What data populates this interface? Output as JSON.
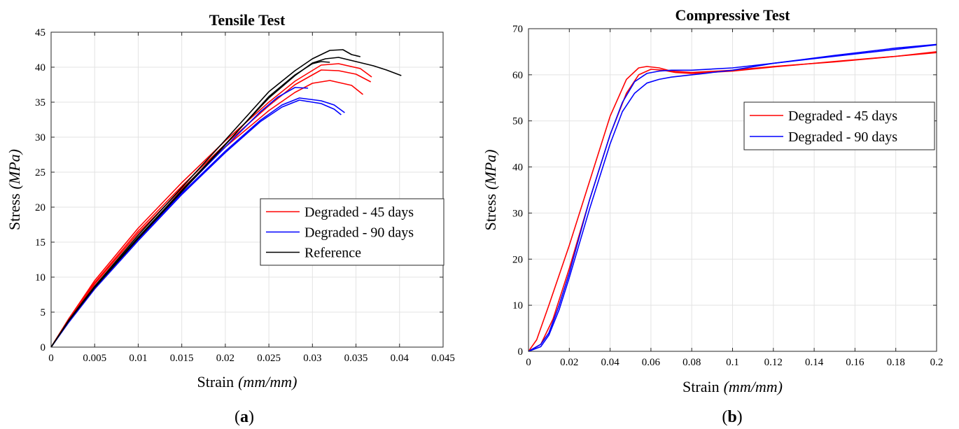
{
  "chart_data": [
    {
      "type": "line",
      "title": "Tensile Test",
      "panel_label": "a",
      "xlabel_text": "Strain",
      "xlabel_unit": "(mm/mm)",
      "ylabel_text": "Stress",
      "ylabel_unit": "(MPa)",
      "xlim": [
        0,
        0.045
      ],
      "ylim": [
        0,
        45
      ],
      "xticks": [
        0,
        0.005,
        0.01,
        0.015,
        0.02,
        0.025,
        0.03,
        0.035,
        0.04,
        0.045
      ],
      "xtick_labels": [
        "0",
        "0.005",
        "0.01",
        "0.015",
        "0.02",
        "0.025",
        "0.03",
        "0.035",
        "0.04",
        "0.045"
      ],
      "yticks": [
        0,
        5,
        10,
        15,
        20,
        25,
        30,
        35,
        40,
        45
      ],
      "ytick_labels": [
        "0",
        "5",
        "10",
        "15",
        "20",
        "25",
        "30",
        "35",
        "40",
        "45"
      ],
      "grid": true,
      "legend_position": "lower-right",
      "legend": [
        {
          "label": "Degraded - 45 days",
          "color": "#ff0000"
        },
        {
          "label": "Degraded - 90 days",
          "color": "#0000ff"
        },
        {
          "label": "Reference",
          "color": "#000000"
        }
      ],
      "series": [
        {
          "group": "Degraded - 45 days",
          "color": "#ff0000",
          "x": [
            0,
            0.002,
            0.005,
            0.01,
            0.015,
            0.02,
            0.025,
            0.028,
            0.031,
            0.033,
            0.0355,
            0.0368
          ],
          "y": [
            0,
            4,
            9.5,
            17,
            23.5,
            29.5,
            35,
            38,
            40.3,
            40.5,
            39.8,
            38.6
          ]
        },
        {
          "group": "Degraded - 45 days",
          "color": "#ff0000",
          "x": [
            0,
            0.002,
            0.005,
            0.01,
            0.015,
            0.02,
            0.025,
            0.028,
            0.031,
            0.033,
            0.035,
            0.0367
          ],
          "y": [
            0,
            4,
            9.2,
            16.6,
            23,
            29,
            34.5,
            37.5,
            39.6,
            39.5,
            39,
            37.9
          ]
        },
        {
          "group": "Degraded - 45 days",
          "color": "#ff0000",
          "x": [
            0,
            0.002,
            0.005,
            0.01,
            0.015,
            0.02,
            0.025,
            0.028,
            0.03,
            0.032,
            0.0345,
            0.0358
          ],
          "y": [
            0,
            3.9,
            9,
            16.3,
            22.6,
            28.6,
            33.8,
            36.4,
            37.7,
            38.1,
            37.4,
            36.1
          ]
        },
        {
          "group": "Degraded - 90 days",
          "color": "#0000ff",
          "x": [
            0,
            0.002,
            0.005,
            0.01,
            0.015,
            0.02,
            0.024,
            0.026,
            0.028,
            0.0295
          ],
          "y": [
            0,
            3.6,
            8.5,
            15.5,
            22.3,
            28.6,
            33.6,
            35.7,
            37.1,
            37
          ]
        },
        {
          "group": "Degraded - 90 days",
          "color": "#0000ff",
          "x": [
            0,
            0.002,
            0.005,
            0.01,
            0.015,
            0.02,
            0.024,
            0.0265,
            0.0285,
            0.031,
            0.0325,
            0.0337
          ],
          "y": [
            0,
            3.6,
            8.4,
            15.4,
            22,
            28,
            32.4,
            34.6,
            35.6,
            35.2,
            34.6,
            33.5
          ]
        },
        {
          "group": "Degraded - 90 days",
          "color": "#0000ff",
          "x": [
            0,
            0.002,
            0.005,
            0.01,
            0.015,
            0.02,
            0.024,
            0.0265,
            0.0285,
            0.031,
            0.0325,
            0.0333
          ],
          "y": [
            0,
            3.5,
            8.3,
            15.2,
            21.8,
            27.8,
            32.2,
            34.3,
            35.3,
            34.8,
            34,
            33.2
          ]
        },
        {
          "group": "Reference",
          "color": "#000000",
          "x": [
            0,
            0.002,
            0.005,
            0.01,
            0.015,
            0.02,
            0.025,
            0.028,
            0.03,
            0.032,
            0.0335,
            0.0345,
            0.0355
          ],
          "y": [
            0,
            3.8,
            8.7,
            16,
            22.8,
            29.6,
            36.5,
            39.5,
            41.2,
            42.4,
            42.5,
            41.8,
            41.5
          ]
        },
        {
          "group": "Reference",
          "color": "#000000",
          "x": [
            0,
            0.002,
            0.005,
            0.01,
            0.015,
            0.02,
            0.025,
            0.028,
            0.03,
            0.0315,
            0.033,
            0.035,
            0.037,
            0.0385,
            0.0402
          ],
          "y": [
            0,
            3.7,
            8.6,
            15.7,
            22.4,
            29,
            35.6,
            38.8,
            40.6,
            41.2,
            41.4,
            40.8,
            40.2,
            39.6,
            38.8
          ]
        },
        {
          "group": "Reference",
          "color": "#000000",
          "x": [
            0,
            0.002,
            0.005,
            0.01,
            0.015,
            0.02,
            0.025,
            0.028,
            0.03,
            0.031,
            0.032
          ],
          "y": [
            0,
            3.7,
            8.5,
            15.5,
            22.2,
            28.9,
            35.8,
            38.9,
            40.5,
            40.8,
            40.7
          ]
        }
      ]
    },
    {
      "type": "line",
      "title": "Compressive Test",
      "panel_label": "b",
      "xlabel_text": "Strain",
      "xlabel_unit": "(mm/mm)",
      "ylabel_text": "Stress",
      "ylabel_unit": "(MPa)",
      "xlim": [
        0,
        0.2
      ],
      "ylim": [
        0,
        70
      ],
      "xticks": [
        0,
        0.02,
        0.04,
        0.06,
        0.08,
        0.1,
        0.12,
        0.14,
        0.16,
        0.18,
        0.2
      ],
      "xtick_labels": [
        "0",
        "0.02",
        "0.04",
        "0.06",
        "0.08",
        "0.1",
        "0.12",
        "0.14",
        "0.16",
        "0.18",
        "0.2"
      ],
      "yticks": [
        0,
        10,
        20,
        30,
        40,
        50,
        60,
        70
      ],
      "ytick_labels": [
        "0",
        "10",
        "20",
        "30",
        "40",
        "50",
        "60",
        "70"
      ],
      "grid": true,
      "legend_position": "right",
      "legend": [
        {
          "label": "Degraded - 45 days",
          "color": "#ff0000"
        },
        {
          "label": "Degraded - 90 days",
          "color": "#0000ff"
        }
      ],
      "series": [
        {
          "group": "Degraded - 45 days",
          "color": "#ff0000",
          "x": [
            0,
            0.004,
            0.01,
            0.02,
            0.03,
            0.04,
            0.048,
            0.054,
            0.058,
            0.064,
            0.07,
            0.08,
            0.1,
            0.12,
            0.15,
            0.18,
            0.2
          ],
          "y": [
            0,
            2.5,
            10,
            23,
            37,
            51,
            59,
            61.5,
            61.8,
            61.5,
            60.8,
            60.5,
            61,
            61.8,
            62.8,
            64,
            65
          ]
        },
        {
          "group": "Degraded - 45 days",
          "color": "#ff0000",
          "x": [
            0,
            0.006,
            0.012,
            0.02,
            0.03,
            0.04,
            0.048,
            0.054,
            0.06,
            0.066,
            0.072,
            0.08,
            0.1,
            0.12,
            0.15,
            0.18,
            0.2
          ],
          "y": [
            0,
            1.5,
            7,
            18,
            33,
            47,
            56,
            60,
            61.2,
            61,
            60.5,
            60.3,
            60.8,
            61.7,
            62.9,
            64,
            64.8
          ]
        },
        {
          "group": "Degraded - 90 days",
          "color": "#0000ff",
          "x": [
            0,
            0.006,
            0.01,
            0.015,
            0.02,
            0.03,
            0.04,
            0.046,
            0.052,
            0.058,
            0.064,
            0.07,
            0.08,
            0.1,
            0.12,
            0.15,
            0.18,
            0.2
          ],
          "y": [
            0,
            1.5,
            4,
            10,
            17,
            33,
            47,
            54,
            58.5,
            60.3,
            60.8,
            61,
            61,
            61.5,
            62.5,
            64,
            65.5,
            66.5
          ]
        },
        {
          "group": "Degraded - 90 days",
          "color": "#0000ff",
          "x": [
            0,
            0.006,
            0.01,
            0.015,
            0.02,
            0.03,
            0.04,
            0.046,
            0.052,
            0.058,
            0.064,
            0.07,
            0.08,
            0.1,
            0.12,
            0.15,
            0.18,
            0.2
          ],
          "y": [
            0,
            1,
            3.5,
            9,
            16,
            31,
            45,
            52,
            56,
            58.2,
            59,
            59.5,
            60,
            61,
            62.5,
            64.2,
            65.8,
            66.6
          ]
        }
      ]
    }
  ]
}
